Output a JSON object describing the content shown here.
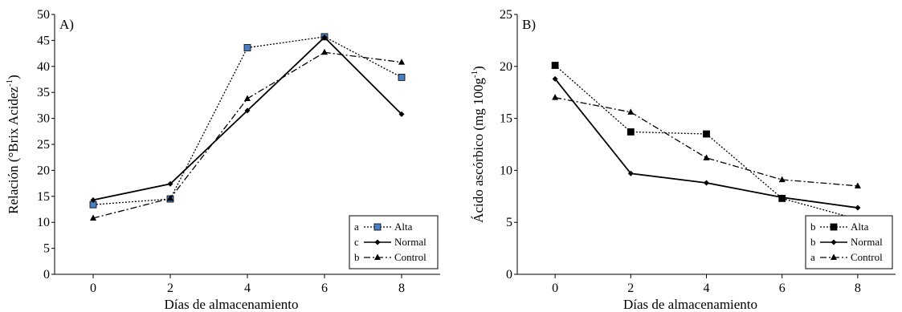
{
  "chart_data": [
    {
      "type": "line",
      "panel_label": "A)",
      "xlabel": "Días de almacenamiento",
      "ylabel": "Relación (°Brix Acidez",
      "ylabel_sup": "-1",
      "ylabel_end": ")",
      "x": [
        0,
        2,
        4,
        6,
        8
      ],
      "x_ticks": [
        "0",
        "2",
        "4",
        "6",
        "8"
      ],
      "xlim": [
        -1,
        9
      ],
      "ylim": [
        0,
        50
      ],
      "y_ticks": [
        "0",
        "5",
        "10",
        "15",
        "20",
        "25",
        "30",
        "35",
        "40",
        "45",
        "50"
      ],
      "grid": false,
      "legend_position": "bottom-right",
      "series": [
        {
          "name": "Alta",
          "letter": "a",
          "values": [
            13.4,
            14.5,
            43.6,
            45.7,
            37.9
          ],
          "marker": "square",
          "dash": "dotted",
          "marker_color": "#4a7fc1"
        },
        {
          "name": "Normal",
          "letter": "c",
          "values": [
            14.3,
            17.4,
            31.5,
            45.6,
            30.8
          ],
          "marker": "diamond",
          "dash": "solid",
          "marker_color": "#000000"
        },
        {
          "name": "Control",
          "letter": "b",
          "values": [
            10.8,
            14.6,
            33.8,
            42.7,
            40.8
          ],
          "marker": "triangle",
          "dash": "dashdot",
          "marker_color": "#000000"
        }
      ]
    },
    {
      "type": "line",
      "panel_label": "B)",
      "xlabel": "Días de almacenamiento",
      "ylabel": "Ácido ascórbico (mg 100g",
      "ylabel_sup": "-1",
      "ylabel_end": ")",
      "x": [
        0,
        2,
        4,
        6,
        8
      ],
      "x_ticks": [
        "0",
        "2",
        "4",
        "6",
        "8"
      ],
      "xlim": [
        -1,
        9
      ],
      "ylim": [
        0,
        25
      ],
      "y_ticks": [
        "0",
        "5",
        "10",
        "15",
        "20",
        "25"
      ],
      "grid": false,
      "legend_position": "bottom-right",
      "series": [
        {
          "name": "Alta",
          "letter": "b",
          "values": [
            20.1,
            13.7,
            13.5,
            7.3,
            5.3
          ],
          "marker": "square",
          "dash": "dotted",
          "marker_color": "#000000"
        },
        {
          "name": "Normal",
          "letter": "b",
          "values": [
            18.8,
            9.7,
            8.8,
            7.4,
            6.4
          ],
          "marker": "diamond",
          "dash": "solid",
          "marker_color": "#000000"
        },
        {
          "name": "Control",
          "letter": "a",
          "values": [
            17.0,
            15.6,
            11.2,
            9.1,
            8.5
          ],
          "marker": "triangle",
          "dash": "dashdot",
          "marker_color": "#000000"
        }
      ]
    }
  ]
}
